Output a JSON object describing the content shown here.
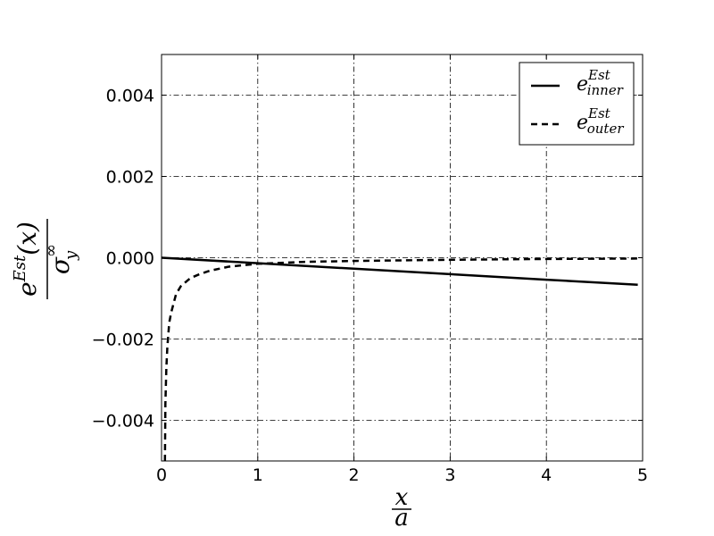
{
  "chart_data": {
    "type": "line",
    "xlim": [
      0,
      5
    ],
    "ylim": [
      -0.005,
      0.005
    ],
    "x_ticks": [
      0,
      1,
      2,
      3,
      4,
      5
    ],
    "x_tick_labels": [
      "0",
      "1",
      "2",
      "3",
      "4",
      "5"
    ],
    "y_ticks": [
      0.004,
      0.002,
      0.0,
      -0.002,
      -0.004
    ],
    "y_tick_labels": [
      "0.004",
      "0.002",
      "0.000",
      "−0.002",
      "−0.004"
    ],
    "grid": true,
    "grid_style": "dash-dot",
    "legend_position": "top-right",
    "xlabel": {
      "numerator": "x",
      "denominator": "a"
    },
    "ylabel": {
      "numerator_base": "e",
      "numerator_sup": "Est",
      "numerator_arg": "(x)",
      "denominator_base": "σ",
      "denominator_sup": "∞",
      "denominator_sub": "y"
    },
    "series": [
      {
        "name": "e_inner^Est",
        "legend_base": "e",
        "legend_sup": "Est",
        "legend_sub": "inner",
        "style": "solid",
        "color": "#000000",
        "x": [
          0,
          1,
          2,
          3,
          4,
          4.95
        ],
        "y": [
          0.0,
          -0.000135,
          -0.00027,
          -0.000405,
          -0.00054,
          -0.000665
        ]
      },
      {
        "name": "e_outer^Est",
        "legend_base": "e",
        "legend_sup": "Est",
        "legend_sub": "outer",
        "style": "dashed",
        "color": "#000000",
        "x": [
          0.035,
          0.04,
          0.05,
          0.06,
          0.08,
          0.1,
          0.15,
          0.2,
          0.3,
          0.4,
          0.5,
          0.7,
          1.0,
          1.5,
          2.0,
          3.0,
          4.0,
          4.95
        ],
        "y": [
          -0.005,
          -0.0036,
          -0.0027,
          -0.0022,
          -0.0016,
          -0.00135,
          -0.0009,
          -0.0007,
          -0.0005,
          -0.0004,
          -0.00032,
          -0.00022,
          -0.00015,
          -0.0001,
          -8e-05,
          -5e-05,
          -3e-05,
          -2e-05
        ]
      }
    ]
  }
}
